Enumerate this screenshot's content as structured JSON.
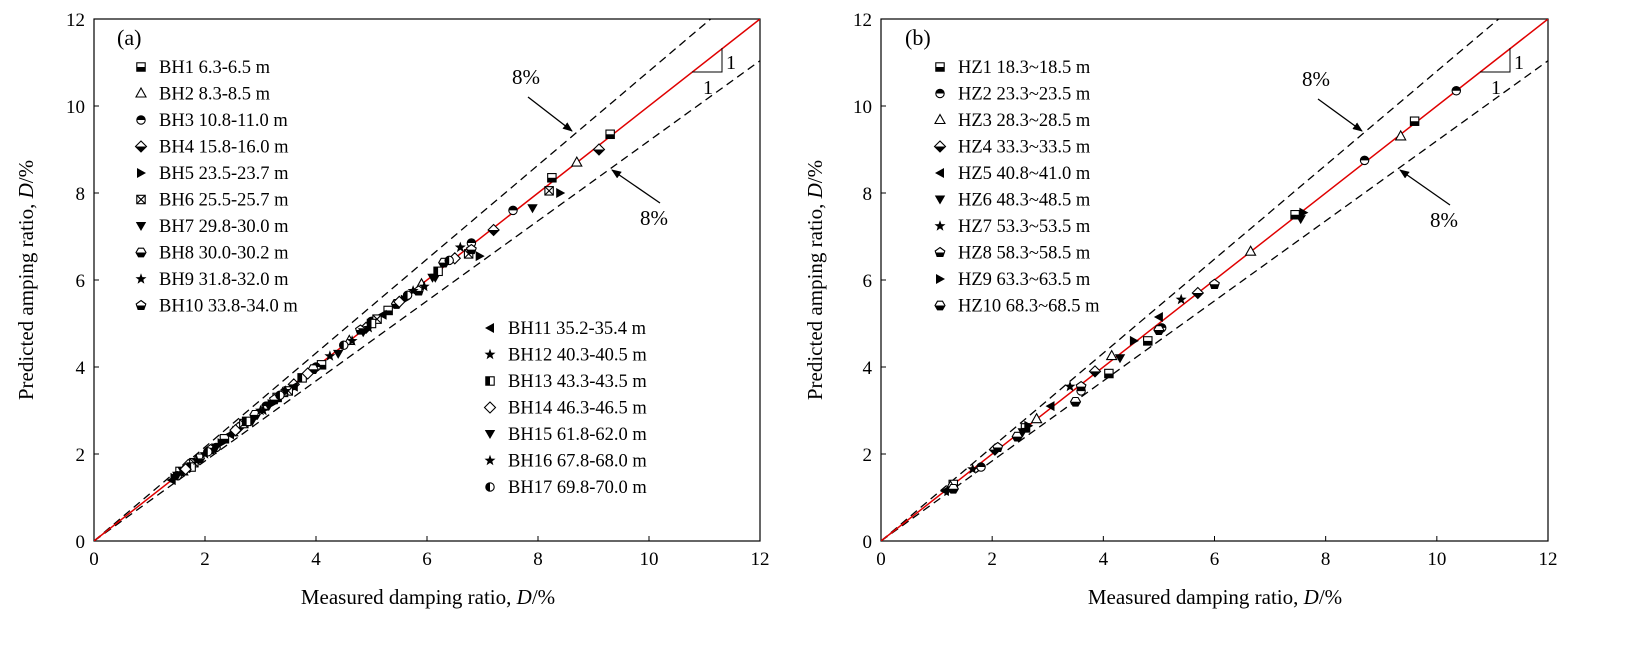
{
  "chart_data": [
    {
      "type": "scatter",
      "panel_label": "(a)",
      "xlabel_main": "Measured damping ratio, ",
      "xlabel_var": "D",
      "xlabel_unit": "/%",
      "ylabel_main": "Predicted  amping ratio, ",
      "ylabel_var": "D",
      "ylabel_unit": "/%",
      "xlim": [
        0,
        12
      ],
      "ylim": [
        0,
        12
      ],
      "x_ticks": [
        "0",
        "2",
        "4",
        "6",
        "8",
        "10",
        "12"
      ],
      "y_ticks": [
        "0",
        "2",
        "4",
        "6",
        "8",
        "10",
        "12"
      ],
      "reference_line": {
        "slope": 1,
        "color": "#e00000"
      },
      "bound_lines": {
        "upper_slope": 1.08,
        "lower_slope": 0.92
      },
      "annotations": {
        "upper": "8%",
        "lower": "8%",
        "slope_run": "1",
        "slope_rise": "1"
      },
      "series": [
        {
          "name": "BH1  6.3-6.5 m",
          "marker": "square-bottom",
          "points": [
            [
              1.55,
              1.6
            ],
            [
              2.35,
              2.35
            ],
            [
              3.3,
              3.3
            ],
            [
              4.1,
              4.05
            ],
            [
              5.3,
              5.3
            ],
            [
              8.25,
              8.35
            ],
            [
              9.3,
              9.35
            ]
          ]
        },
        {
          "name": "BH2  8.3-8.5 m",
          "marker": "triangle",
          "points": [
            [
              1.6,
              1.6
            ],
            [
              2.5,
              2.5
            ],
            [
              3.4,
              3.4
            ],
            [
              4.6,
              4.6
            ],
            [
              5.9,
              5.9
            ],
            [
              8.7,
              8.7
            ]
          ]
        },
        {
          "name": "BH3  10.8-11.0 m",
          "marker": "circle-top",
          "points": [
            [
              1.5,
              1.5
            ],
            [
              2.2,
              2.15
            ],
            [
              3.1,
              3.1
            ],
            [
              4.0,
              4.0
            ],
            [
              5.0,
              5.05
            ],
            [
              6.8,
              6.85
            ],
            [
              7.55,
              7.6
            ]
          ]
        },
        {
          "name": "BH4  15.8-16.0 m",
          "marker": "diamond-bottom",
          "points": [
            [
              1.7,
              1.75
            ],
            [
              2.6,
              2.6
            ],
            [
              3.6,
              3.6
            ],
            [
              4.9,
              4.9
            ],
            [
              7.2,
              7.15
            ],
            [
              9.1,
              9.0
            ]
          ]
        },
        {
          "name": "BH5  23.5-23.7 m",
          "marker": "tri-right",
          "points": [
            [
              1.45,
              1.45
            ],
            [
              2.3,
              2.25
            ],
            [
              3.2,
              3.15
            ],
            [
              5.6,
              5.55
            ],
            [
              6.95,
              6.55
            ],
            [
              8.4,
              8.0
            ]
          ]
        },
        {
          "name": "BH6  25.5-25.7 m",
          "marker": "square-x",
          "points": [
            [
              1.8,
              1.8
            ],
            [
              2.7,
              2.7
            ],
            [
              3.5,
              3.45
            ],
            [
              5.1,
              5.1
            ],
            [
              6.75,
              6.6
            ],
            [
              8.2,
              8.05
            ]
          ]
        },
        {
          "name": "BH7  29.8-30.0 m",
          "marker": "tri-down",
          "points": [
            [
              1.6,
              1.6
            ],
            [
              2.85,
              2.75
            ],
            [
              4.4,
              4.3
            ],
            [
              6.15,
              6.05
            ],
            [
              7.9,
              7.65
            ]
          ]
        },
        {
          "name": "BH8  30.0-30.2 m",
          "marker": "hexagon-bottom",
          "points": [
            [
              1.9,
              1.9
            ],
            [
              2.9,
              2.9
            ],
            [
              3.95,
              3.95
            ],
            [
              5.45,
              5.45
            ],
            [
              6.3,
              6.4
            ]
          ]
        },
        {
          "name": "BH9  31.8-32.0 m",
          "marker": "star",
          "points": [
            [
              2.0,
              2.0
            ],
            [
              3.05,
              3.0
            ],
            [
              4.65,
              4.6
            ],
            [
              6.6,
              6.75
            ]
          ]
        },
        {
          "name": "BH10  33.8-34.0 m",
          "marker": "pentagon-bottom",
          "points": [
            [
              2.1,
              2.1
            ],
            [
              3.25,
              3.25
            ],
            [
              4.8,
              4.85
            ],
            [
              5.85,
              5.75
            ],
            [
              6.8,
              6.7
            ]
          ]
        },
        {
          "name": "BH11  35.2-35.4 m",
          "marker": "tri-left",
          "points": [
            [
              1.4,
              1.4
            ],
            [
              2.45,
              2.45
            ],
            [
              3.6,
              3.55
            ],
            [
              5.2,
              5.2
            ]
          ]
        },
        {
          "name": "BH12  40.3-40.5 m",
          "marker": "star",
          "points": [
            [
              2.15,
              2.1
            ],
            [
              3.45,
              3.45
            ],
            [
              4.95,
              4.9
            ],
            [
              5.95,
              5.85
            ]
          ]
        },
        {
          "name": "BH13  43.3-43.5 m",
          "marker": "square-left",
          "points": [
            [
              1.75,
              1.7
            ],
            [
              2.75,
              2.75
            ],
            [
              3.75,
              3.75
            ],
            [
              5.0,
              5.0
            ],
            [
              6.2,
              6.2
            ]
          ]
        },
        {
          "name": "BH14  46.3-46.5 m",
          "marker": "diamond-open",
          "points": [
            [
              1.65,
              1.65
            ],
            [
              2.55,
              2.55
            ],
            [
              3.85,
              3.85
            ],
            [
              5.5,
              5.5
            ],
            [
              6.5,
              6.5
            ]
          ]
        },
        {
          "name": "BH15  61.8-62.0 m",
          "marker": "tri-down",
          "points": [
            [
              1.5,
              1.5
            ],
            [
              2.2,
              2.15
            ],
            [
              3.15,
              3.1
            ],
            [
              4.85,
              4.8
            ],
            [
              6.1,
              6.05
            ]
          ]
        },
        {
          "name": "BH16  67.8-68.0 m",
          "marker": "star",
          "points": [
            [
              1.85,
              1.85
            ],
            [
              3.0,
              3.0
            ],
            [
              4.25,
              4.25
            ],
            [
              5.75,
              5.75
            ]
          ]
        },
        {
          "name": "BH17  69.8-70.0 m",
          "marker": "circle-left",
          "points": [
            [
              2.05,
              2.05
            ],
            [
              3.35,
              3.35
            ],
            [
              4.5,
              4.5
            ],
            [
              5.65,
              5.65
            ],
            [
              6.4,
              6.45
            ]
          ]
        }
      ]
    },
    {
      "type": "scatter",
      "panel_label": "(b)",
      "xlabel_main": "Measured damping ratio, ",
      "xlabel_var": "D",
      "xlabel_unit": "/%",
      "ylabel_main": "Predicted  amping ratio, ",
      "ylabel_var": "D",
      "ylabel_unit": "/%",
      "xlim": [
        0,
        12
      ],
      "ylim": [
        0,
        12
      ],
      "x_ticks": [
        "0",
        "2",
        "4",
        "6",
        "8",
        "10",
        "12"
      ],
      "y_ticks": [
        "0",
        "2",
        "4",
        "6",
        "8",
        "10",
        "12"
      ],
      "reference_line": {
        "slope": 1,
        "color": "#e00000"
      },
      "bound_lines": {
        "upper_slope": 1.08,
        "lower_slope": 0.92
      },
      "annotations": {
        "upper": "8%",
        "lower": "8%",
        "slope_run": "1",
        "slope_rise": "1"
      },
      "series": [
        {
          "name": "HZ1  18.3~18.5 m",
          "marker": "square-bottom",
          "points": [
            [
              1.3,
              1.3
            ],
            [
              2.6,
              2.6
            ],
            [
              4.1,
              3.85
            ],
            [
              4.8,
              4.6
            ],
            [
              7.45,
              7.5
            ],
            [
              9.6,
              9.65
            ]
          ]
        },
        {
          "name": "HZ2  23.3~23.5 m",
          "marker": "circle-top",
          "points": [
            [
              1.8,
              1.7
            ],
            [
              3.6,
              3.45
            ],
            [
              5.05,
              4.9
            ],
            [
              8.7,
              8.75
            ],
            [
              10.35,
              10.35
            ]
          ]
        },
        {
          "name": "HZ3  28.3~28.5 m",
          "marker": "triangle",
          "points": [
            [
              1.25,
              1.25
            ],
            [
              2.8,
              2.8
            ],
            [
              4.15,
              4.25
            ],
            [
              6.65,
              6.65
            ],
            [
              9.35,
              9.3
            ]
          ]
        },
        {
          "name": "HZ4  33.3~33.5 m",
          "marker": "diamond-bottom",
          "points": [
            [
              2.05,
              2.1
            ],
            [
              3.85,
              3.9
            ],
            [
              5.7,
              5.7
            ]
          ]
        },
        {
          "name": "HZ5  40.8~41.0 m",
          "marker": "tri-left",
          "points": [
            [
              1.15,
              1.15
            ],
            [
              3.05,
              3.1
            ],
            [
              5.0,
              5.15
            ]
          ]
        },
        {
          "name": "HZ6  48.3~48.5 m",
          "marker": "tri-down",
          "points": [
            [
              2.55,
              2.5
            ],
            [
              4.3,
              4.2
            ],
            [
              7.55,
              7.4
            ]
          ]
        },
        {
          "name": "HZ7  53.3~53.5 m",
          "marker": "star",
          "points": [
            [
              1.65,
              1.65
            ],
            [
              3.4,
              3.55
            ],
            [
              5.4,
              5.55
            ]
          ]
        },
        {
          "name": "HZ8  58.3~58.5 m",
          "marker": "pentagon-bottom",
          "points": [
            [
              2.1,
              2.15
            ],
            [
              3.6,
              3.55
            ],
            [
              6.0,
              5.9
            ]
          ]
        },
        {
          "name": "HZ9  63.3~63.5 m",
          "marker": "tri-right",
          "points": [
            [
              2.65,
              2.65
            ],
            [
              4.55,
              4.6
            ],
            [
              7.6,
              7.55
            ]
          ]
        },
        {
          "name": "HZ10  68.3~68.5 m",
          "marker": "hexagon-bottom",
          "points": [
            [
              1.3,
              1.2
            ],
            [
              2.45,
              2.4
            ],
            [
              3.5,
              3.2
            ],
            [
              5.0,
              4.85
            ]
          ]
        }
      ]
    }
  ]
}
